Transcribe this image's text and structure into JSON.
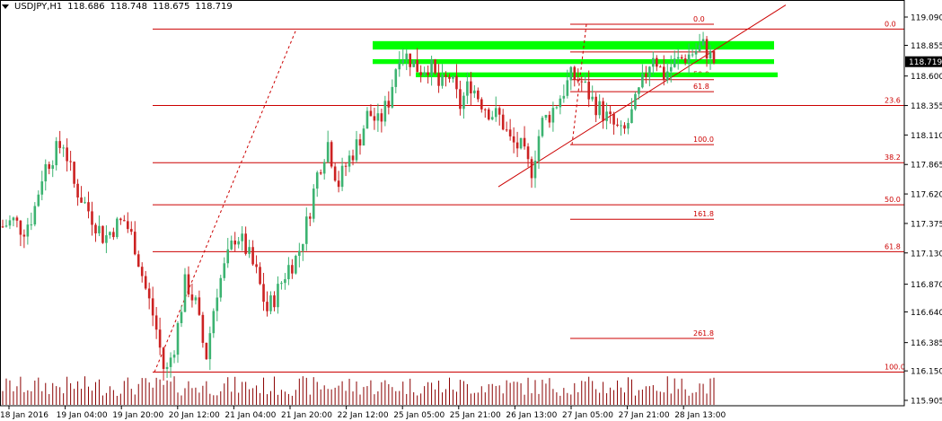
{
  "header": {
    "symbol": "USDJPY,H1",
    "open": "118.686",
    "high": "118.748",
    "low": "118.675",
    "close": "118.719"
  },
  "chart_data": {
    "type": "candlestick",
    "title": "",
    "symbol": "USDJPY",
    "timeframe": "H1",
    "grid": false,
    "colors": {
      "bull": "#3cb371",
      "bear": "#cc2222",
      "fib": "#cc0000",
      "zone": "#00ff00",
      "current_price_bg": "#000000"
    },
    "y_axis": {
      "range": [
        115.91,
        119.17
      ],
      "ticks": [
        "119.090",
        "118.855",
        "118.600",
        "118.355",
        "118.110",
        "117.865",
        "117.620",
        "117.375",
        "117.130",
        "116.870",
        "116.640",
        "116.385",
        "116.150",
        "115.905"
      ]
    },
    "x_axis": {
      "ticks": [
        "18 Jan 2016",
        "19 Jan 04:00",
        "19 Jan 20:00",
        "20 Jan 12:00",
        "21 Jan 04:00",
        "21 Jan 20:00",
        "22 Jan 12:00",
        "25 Jan 05:00",
        "25 Jan 21:00",
        "26 Jan 13:00",
        "27 Jan 05:00",
        "27 Jan 21:00",
        "28 Jan 13:00"
      ]
    },
    "current_price": "118.719",
    "candles_key": "waypoints approximate the close path over the visible bars",
    "close_path": [
      117.35,
      117.4,
      117.32,
      117.45,
      117.82,
      117.95,
      118.05,
      117.7,
      117.55,
      117.4,
      117.25,
      117.35,
      117.4,
      117.2,
      116.85,
      116.55,
      116.1,
      116.4,
      116.9,
      116.7,
      116.25,
      116.8,
      117.05,
      117.3,
      117.15,
      116.95,
      116.65,
      116.8,
      117.0,
      117.1,
      117.4,
      117.8,
      118.05,
      117.7,
      117.9,
      118.05,
      118.3,
      118.2,
      118.4,
      118.8,
      118.75,
      118.65,
      118.7,
      118.5,
      118.6,
      118.35,
      118.55,
      118.4,
      118.3,
      118.25,
      118.05,
      118.0,
      117.8,
      118.2,
      118.3,
      118.45,
      118.6,
      118.55,
      118.4,
      118.3,
      118.2,
      118.1,
      118.3,
      118.55,
      118.8,
      118.6,
      118.7,
      118.75,
      118.8,
      118.85,
      118.72
    ],
    "volume_key": "relative tick volume per bar, 0-1",
    "fib_levels_wide": [
      {
        "label": "0.0",
        "value": 118.99
      },
      {
        "label": "23.6",
        "value": 118.355
      },
      {
        "label": "38.2",
        "value": 117.88
      },
      {
        "label": "50.0",
        "value": 117.53
      },
      {
        "label": "61.8",
        "value": 117.14
      },
      {
        "label": "100.0",
        "value": 116.14
      }
    ],
    "fib_levels_small": [
      {
        "label": "0.0",
        "value": 119.03
      },
      {
        "label": "23.6",
        "value": 118.8
      },
      {
        "label": "50.0",
        "value": 118.57
      },
      {
        "label": "61.8",
        "value": 118.47
      },
      {
        "label": "100.0",
        "value": 118.03
      },
      {
        "label": "161.8",
        "value": 117.41
      },
      {
        "label": "261.8",
        "value": 116.42
      }
    ],
    "zones": [
      {
        "from": 118.82,
        "to": 118.89
      },
      {
        "from": 118.7,
        "to": 118.74
      },
      {
        "from": 118.59,
        "to": 118.63
      }
    ],
    "trendline": {
      "from_value": 117.68,
      "to_value": 119.19
    }
  }
}
